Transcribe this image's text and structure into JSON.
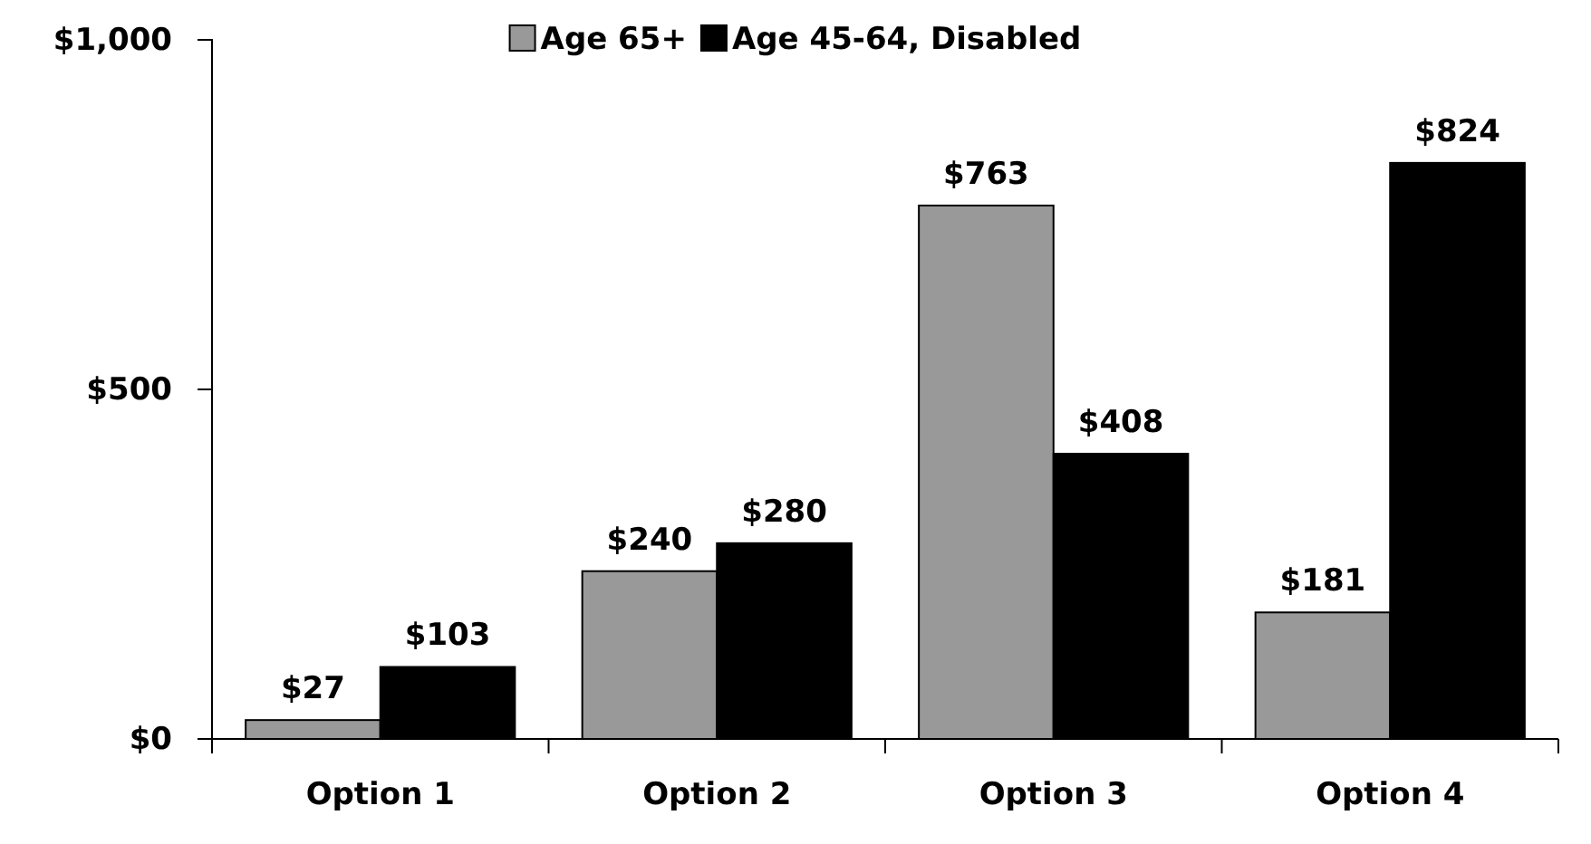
{
  "chart_data": {
    "type": "bar",
    "categories": [
      "Option 1",
      "Option 2",
      "Option 3",
      "Option 4"
    ],
    "series": [
      {
        "name": "Age 65+",
        "color": "#999999",
        "values": [
          27,
          240,
          763,
          181
        ],
        "value_labels": [
          "$27",
          "$240",
          "$763",
          "$181"
        ]
      },
      {
        "name": "Age 45-64, Disabled",
        "color": "#000000",
        "values": [
          103,
          280,
          408,
          824
        ],
        "value_labels": [
          "$103",
          "$280",
          "$408",
          "$824"
        ]
      }
    ],
    "ylim": [
      0,
      1000
    ],
    "yticks": [
      {
        "value": 0,
        "label": "$0"
      },
      {
        "value": 500,
        "label": "$500"
      },
      {
        "value": 1000,
        "label": "$1,000"
      }
    ],
    "legend": "top",
    "grid": false
  }
}
